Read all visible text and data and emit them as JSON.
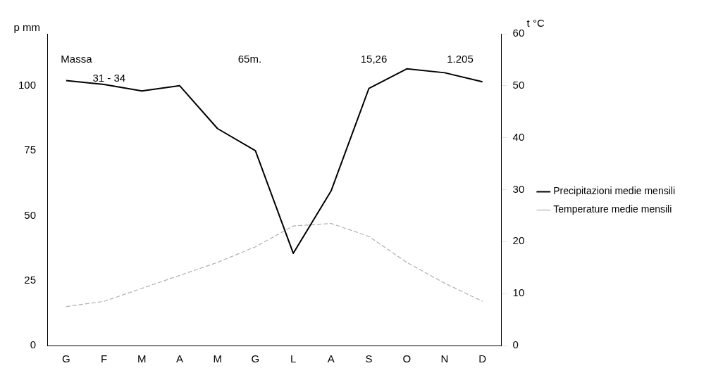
{
  "chart_data": {
    "type": "line",
    "ylabel": "p mm",
    "y2label": "t °C",
    "categories": [
      "G",
      "F",
      "M",
      "A",
      "M",
      "G",
      "L",
      "A",
      "S",
      "O",
      "N",
      "D"
    ],
    "series": [
      {
        "name": "Precipitazioni medie mensili",
        "color": "#000000",
        "line_style": "solid",
        "values": [
          102,
          100.5,
          98,
          100,
          83.5,
          75,
          35.5,
          59.5,
          99,
          106.5,
          105,
          101.5
        ]
      },
      {
        "name": "Temperature medie mensili",
        "color": "#b0b0b0",
        "line_style": "dashed",
        "axis": "y2",
        "values": [
          7.5,
          8.5,
          11,
          13.5,
          16,
          19,
          23,
          23.5,
          21,
          16,
          12,
          8.5
        ]
      }
    ],
    "ylim": [
      0,
      120
    ],
    "yticks": [
      0,
      25,
      50,
      75,
      100
    ],
    "y2lim": [
      0,
      60
    ],
    "y2ticks": [
      0,
      10,
      20,
      30,
      40,
      50,
      60
    ],
    "annotations": [
      "Massa",
      "31 - 34",
      "65m.",
      "15,26",
      "1.205"
    ],
    "grid": false,
    "legend": "right",
    "marker": "none"
  }
}
